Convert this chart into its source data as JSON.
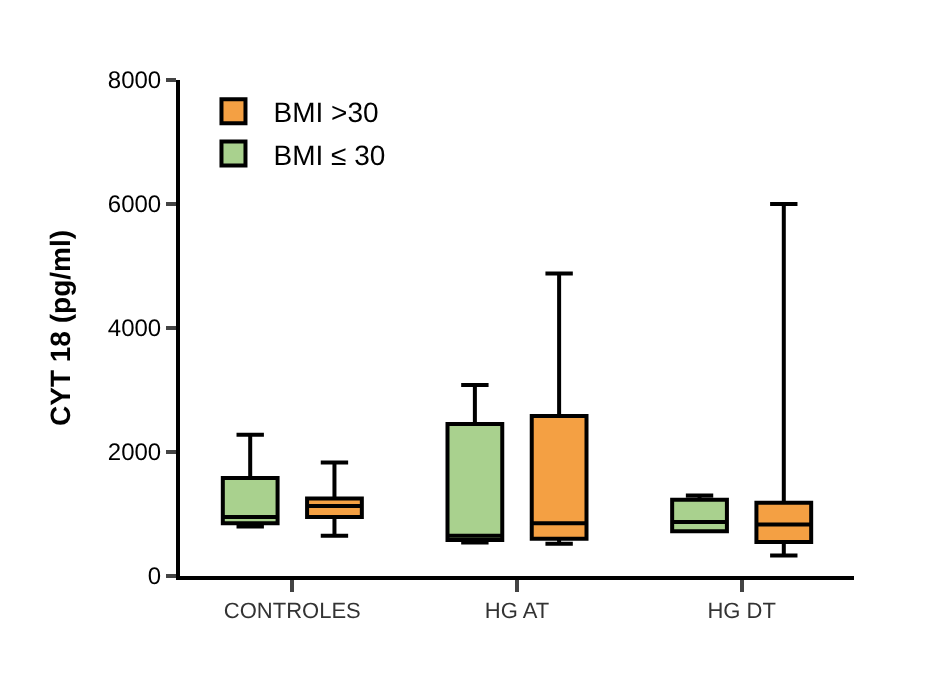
{
  "chart_data": {
    "type": "box",
    "ylabel": "CYT 18 (pg/ml)",
    "categories": [
      "CONTROLES",
      "HG AT",
      "HG DT"
    ],
    "ylim": [
      0,
      8000
    ],
    "yticks": [
      0,
      2000,
      4000,
      6000,
      8000
    ],
    "legend": "top left",
    "series": [
      {
        "name": "BMI ≤ 30",
        "color": "#a9d18e",
        "boxes": [
          {
            "low": 800,
            "q1": 850,
            "median": 950,
            "q3": 1580,
            "high": 2280
          },
          {
            "low": 540,
            "q1": 580,
            "median": 650,
            "q3": 2450,
            "high": 3080
          },
          {
            "low": 720,
            "q1": 720,
            "median": 870,
            "q3": 1230,
            "high": 1300
          }
        ]
      },
      {
        "name": "BMI >30",
        "color": "#f4a043",
        "boxes": [
          {
            "low": 650,
            "q1": 950,
            "median": 1130,
            "q3": 1250,
            "high": 1830
          },
          {
            "low": 520,
            "q1": 600,
            "median": 850,
            "q3": 2580,
            "high": 4880
          },
          {
            "low": 330,
            "q1": 550,
            "median": 830,
            "q3": 1180,
            "high": 6000
          }
        ]
      }
    ]
  }
}
